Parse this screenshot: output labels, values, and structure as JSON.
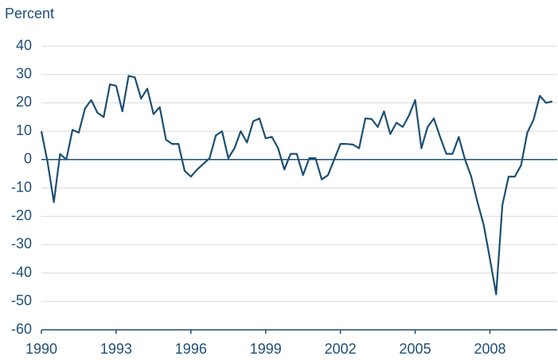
{
  "chart_data": {
    "type": "line",
    "y_axis_label": "Percent",
    "x": [
      1990,
      1990.25,
      1990.5,
      1990.75,
      1991,
      1991.25,
      1991.5,
      1991.75,
      1992,
      1992.25,
      1992.5,
      1992.75,
      1993,
      1993.25,
      1993.5,
      1993.75,
      1994,
      1994.25,
      1994.5,
      1994.75,
      1995,
      1995.25,
      1995.5,
      1995.75,
      1996,
      1996.25,
      1996.5,
      1996.75,
      1997,
      1997.25,
      1997.5,
      1997.75,
      1998,
      1998.25,
      1998.5,
      1998.75,
      1999,
      1999.25,
      1999.5,
      1999.75,
      2000,
      2000.25,
      2000.5,
      2000.75,
      2001,
      2001.25,
      2001.5,
      2001.75,
      2002,
      2002.25,
      2002.5,
      2002.75,
      2003,
      2003.25,
      2003.5,
      2003.75,
      2004,
      2004.25,
      2004.5,
      2004.75,
      2005,
      2005.25,
      2005.5,
      2005.75,
      2006,
      2006.25,
      2006.5,
      2006.75,
      2007,
      2007.25,
      2007.5,
      2007.75,
      2008,
      2008.25,
      2008.5,
      2008.75,
      2009,
      2009.25,
      2009.5,
      2009.75,
      2010,
      2010.25,
      2010.5
    ],
    "series": [
      {
        "color": "#1b4f72",
        "values": [
          10,
          -1,
          -15,
          2,
          0,
          10.5,
          9.5,
          18,
          21,
          16.5,
          15,
          26.5,
          26,
          17,
          29.5,
          29,
          21.5,
          25,
          16,
          18.5,
          7,
          5.5,
          5.5,
          -4,
          -6,
          -3.5,
          -1.5,
          0.5,
          8.5,
          10,
          0.5,
          4,
          10,
          6,
          13.5,
          14.5,
          7.5,
          8,
          4,
          -3.5,
          2,
          2,
          -5.5,
          0.5,
          0.5,
          -7,
          -5.5,
          0,
          5.5,
          5.5,
          5.3,
          4,
          14.5,
          14.3,
          11.5,
          17,
          9,
          13,
          11.5,
          15.5,
          21,
          4,
          11.5,
          14.5,
          8,
          2,
          2,
          8,
          0,
          -6,
          -15,
          -23,
          -35,
          -47.5,
          -16,
          -6,
          -6,
          -2,
          9.5,
          14,
          22.5,
          20,
          20.5
        ]
      }
    ],
    "xlim": [
      1990,
      2010.7
    ],
    "xticks": [
      1990,
      1993,
      1996,
      1999,
      2002,
      2005,
      2008
    ],
    "ylim": [
      -60,
      40
    ],
    "yticks": [
      -60,
      -50,
      -40,
      -30,
      -20,
      -10,
      0,
      10,
      20,
      30,
      40
    ],
    "grid": true
  }
}
